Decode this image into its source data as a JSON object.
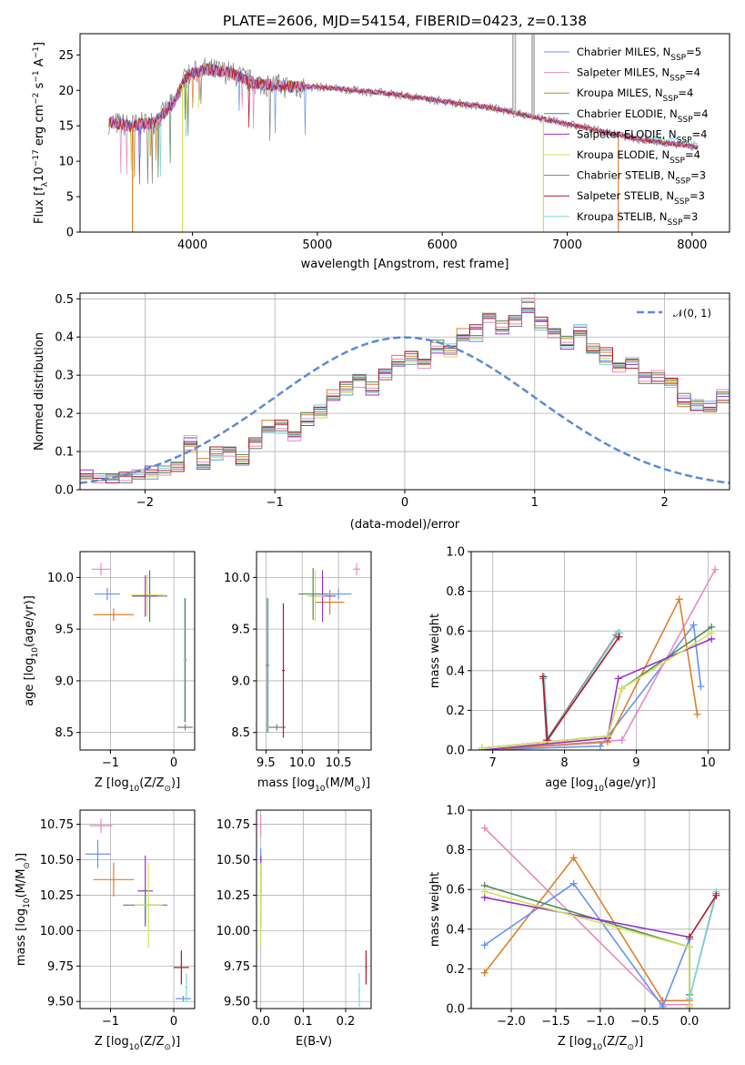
{
  "title": "PLATE=2606, MJD=54154, FIBERID=0423, z=0.138",
  "colors": [
    "#6495ed",
    "#e78ac3",
    "#d9822b",
    "#4d8a5c",
    "#9932cc",
    "#d4e157",
    "#7f7f7f",
    "#b2182b",
    "#7fd8d8"
  ],
  "chart_data": [
    {
      "id": "spectrum",
      "type": "line",
      "xlabel": "wavelength [Angstrom, rest frame]",
      "ylabel_main": "Flux [f",
      "ylabel_sub": "λ",
      "ylabel_rest": "10",
      "ylabel_sup": "−17",
      "ylabel_tail": " erg cm",
      "ylabel_sup2": "−2",
      "ylabel_tail2": " s",
      "ylabel_sup3": "−1",
      "ylabel_tail3": " A",
      "ylabel_sup4": "−1",
      "ylabel_end": "]",
      "xlim": [
        3100,
        8300
      ],
      "ylim": [
        0,
        28
      ],
      "xticks": [
        4000,
        5000,
        6000,
        7000,
        8000
      ],
      "yticks": [
        0,
        5,
        10,
        15,
        20,
        25
      ],
      "grid": false,
      "legend_position": "top-right",
      "legend": [
        {
          "name": "Chabrier MILES, N",
          "sub": "SSP",
          "tail": "=5"
        },
        {
          "name": "Salpeter MILES, N",
          "sub": "SSP",
          "tail": "=4"
        },
        {
          "name": "Kroupa MILES, N",
          "sub": "SSP",
          "tail": "=4"
        },
        {
          "name": "Chabrier ELODIE, N",
          "sub": "SSP",
          "tail": "=4"
        },
        {
          "name": "Salpeter ELODIE, N",
          "sub": "SSP",
          "tail": "=4"
        },
        {
          "name": "Kroupa ELODIE, N",
          "sub": "SSP",
          "tail": "=4"
        },
        {
          "name": "Chabrier STELIB, N",
          "sub": "SSP",
          "tail": "=3"
        },
        {
          "name": "Salpeter STELIB, N",
          "sub": "SSP",
          "tail": "=3"
        },
        {
          "name": "Kroupa STELIB, N",
          "sub": "SSP",
          "tail": "=3"
        }
      ],
      "continuum": {
        "x": [
          3330,
          3500,
          3700,
          3860,
          3950,
          4100,
          4300,
          4500,
          4800,
          5000,
          5300,
          5600,
          6000,
          6400,
          6800,
          7200,
          7600,
          8050
        ],
        "y": [
          15.5,
          15.0,
          15.5,
          18.5,
          22.0,
          23.0,
          22.5,
          21.0,
          20.5,
          20.5,
          20.0,
          19.5,
          18.5,
          17.5,
          16.0,
          14.5,
          13.0,
          12.0
        ]
      },
      "drops": [
        {
          "x": 3520,
          "to": 0,
          "series": 2
        },
        {
          "x": 3920,
          "to": 0,
          "series": 5
        },
        {
          "x": 6810,
          "to": 0,
          "series": 5
        },
        {
          "x": 7410,
          "to": 0,
          "series": 2
        }
      ]
    },
    {
      "id": "residuals",
      "type": "step",
      "xlabel": "(data-model)/error",
      "ylabel": "Normed distribution",
      "xlim": [
        -2.5,
        2.5
      ],
      "ylim": [
        0,
        0.515
      ],
      "xticks": [
        -2,
        -1,
        0,
        1,
        2
      ],
      "xticklabels": [
        "−2",
        "−1",
        "0",
        "1",
        "2"
      ],
      "yticks": [
        0.0,
        0.1,
        0.2,
        0.3,
        0.4,
        0.5
      ],
      "yticklabels": [
        "0.0",
        "0.1",
        "0.2",
        "0.3",
        "0.4",
        "0.5"
      ],
      "grid": true,
      "legend_position": "top-right",
      "gauss_label": "𝒩(0, 1)",
      "bin_width": 0.1,
      "bins_start": -2.5,
      "series_heights": [
        [
          0.04,
          0.03,
          0.03,
          0.03,
          0.04,
          0.04,
          0.05,
          0.06,
          0.11,
          0.06,
          0.09,
          0.1,
          0.07,
          0.12,
          0.15,
          0.16,
          0.14,
          0.18,
          0.2,
          0.24,
          0.26,
          0.28,
          0.26,
          0.3,
          0.33,
          0.34,
          0.33,
          0.37,
          0.36,
          0.39,
          0.4,
          0.45,
          0.42,
          0.44,
          0.49,
          0.43,
          0.41,
          0.38,
          0.42,
          0.36,
          0.35,
          0.32,
          0.34,
          0.29,
          0.3,
          0.29,
          0.24,
          0.23,
          0.22,
          0.25
        ],
        [
          0.03,
          0.03,
          0.03,
          0.04,
          0.04,
          0.04,
          0.05,
          0.06,
          0.12,
          0.07,
          0.1,
          0.11,
          0.08,
          0.13,
          0.17,
          0.17,
          0.15,
          0.19,
          0.21,
          0.25,
          0.27,
          0.3,
          0.27,
          0.31,
          0.34,
          0.35,
          0.34,
          0.38,
          0.37,
          0.41,
          0.42,
          0.46,
          0.43,
          0.45,
          0.48,
          0.44,
          0.42,
          0.39,
          0.41,
          0.37,
          0.36,
          0.33,
          0.33,
          0.3,
          0.29,
          0.28,
          0.23,
          0.22,
          0.21,
          0.24
        ],
        [
          0.04,
          0.03,
          0.04,
          0.03,
          0.04,
          0.05,
          0.05,
          0.07,
          0.13,
          0.06,
          0.1,
          0.1,
          0.08,
          0.12,
          0.16,
          0.16,
          0.14,
          0.18,
          0.21,
          0.24,
          0.27,
          0.29,
          0.26,
          0.3,
          0.33,
          0.35,
          0.33,
          0.37,
          0.37,
          0.4,
          0.41,
          0.45,
          0.42,
          0.44,
          0.47,
          0.43,
          0.41,
          0.38,
          0.42,
          0.37,
          0.34,
          0.32,
          0.34,
          0.29,
          0.3,
          0.28,
          0.24,
          0.22,
          0.22,
          0.25
        ]
      ]
    },
    {
      "id": "age-vs-Z",
      "type": "errorbar",
      "xlabel_main": "Z [log",
      "xlabel_sub": "10",
      "xlabel_rest": "(Z/Z",
      "xlabel_sub2": "⊙",
      "xlabel_end": ")]",
      "ylabel_main": "age  [log",
      "ylabel_sub": "10",
      "ylabel_end": "(age/yr)]",
      "xlim": [
        -1.48,
        0.33
      ],
      "ylim": [
        8.33,
        10.25
      ],
      "xticks": [
        -1,
        0
      ],
      "xticklabels": [
        "−1",
        "0"
      ],
      "yticks": [
        8.5,
        9.0,
        9.5,
        10.0
      ],
      "yticklabels": [
        "8.5",
        "9.0",
        "9.5",
        "10.0"
      ],
      "grid": true,
      "points": [
        {
          "x": -1.15,
          "y": 10.08,
          "xerr": 0.15,
          "yerr": 0.06,
          "c": 1
        },
        {
          "x": -1.05,
          "y": 9.84,
          "xerr": 0.2,
          "yerr": 0.06,
          "c": 0
        },
        {
          "x": -0.95,
          "y": 9.64,
          "xerr": 0.32,
          "yerr": 0.06,
          "c": 2
        },
        {
          "x": -0.38,
          "y": 9.82,
          "xerr": 0.28,
          "yerr": 0.25,
          "c": 3
        },
        {
          "x": -0.42,
          "y": 9.83,
          "xerr": 0.26,
          "yerr": 0.2,
          "c": 5
        },
        {
          "x": -0.45,
          "y": 9.82,
          "xerr": 0.2,
          "yerr": 0.2,
          "c": 4
        },
        {
          "x": 0.18,
          "y": 8.55,
          "xerr": 0.12,
          "yerr": 0.03,
          "c": 6
        },
        {
          "x": 0.18,
          "y": 9.2,
          "xerr": 0.02,
          "yerr": 0.6,
          "c": 7
        },
        {
          "x": 0.17,
          "y": 9.2,
          "xerr": 0.02,
          "yerr": 0.6,
          "c": 8
        }
      ]
    },
    {
      "id": "age-vs-mass",
      "type": "errorbar",
      "xlabel_main": "mass [log",
      "xlabel_sub": "10",
      "xlabel_rest": "(M/M",
      "xlabel_sub2": "⊙",
      "xlabel_end": ")]",
      "xlim": [
        9.37,
        10.95
      ],
      "ylim": [
        8.33,
        10.25
      ],
      "xticks": [
        9.5,
        10.0,
        10.5
      ],
      "xticklabels": [
        "9.5",
        "10.0",
        "10.5"
      ],
      "yticks": [
        8.5,
        9.0,
        9.5,
        10.0
      ],
      "yticklabels": [
        "8.5",
        "9.0",
        "9.5",
        "10.0"
      ],
      "grid": true,
      "points": [
        {
          "x": 10.75,
          "y": 10.08,
          "xerr": 0.05,
          "yerr": 0.06,
          "c": 1
        },
        {
          "x": 10.5,
          "y": 9.84,
          "xerr": 0.18,
          "yerr": 0.05,
          "c": 0
        },
        {
          "x": 10.38,
          "y": 9.76,
          "xerr": 0.2,
          "yerr": 0.12,
          "c": 2
        },
        {
          "x": 10.28,
          "y": 9.82,
          "xerr": 0.18,
          "yerr": 0.25,
          "c": 4
        },
        {
          "x": 10.18,
          "y": 9.82,
          "xerr": 0.12,
          "yerr": 0.25,
          "c": 5
        },
        {
          "x": 10.15,
          "y": 9.84,
          "xerr": 0.2,
          "yerr": 0.25,
          "c": 3
        },
        {
          "x": 9.65,
          "y": 8.55,
          "xerr": 0.12,
          "yerr": 0.03,
          "c": 6
        },
        {
          "x": 9.74,
          "y": 9.1,
          "xerr": 0.02,
          "yerr": 0.65,
          "c": 7
        },
        {
          "x": 9.53,
          "y": 9.15,
          "xerr": 0.02,
          "yerr": 0.65,
          "c": 8
        },
        {
          "x": 9.52,
          "y": 9.15,
          "xerr": 0.02,
          "yerr": 0.65,
          "c": 6
        }
      ]
    },
    {
      "id": "weight-vs-age",
      "type": "line",
      "xlabel_main": "age  [log",
      "xlabel_sub": "10",
      "xlabel_end": "(age/yr)]",
      "ylabel": "mass weight",
      "xlim": [
        6.7,
        10.3
      ],
      "ylim": [
        0,
        1.0
      ],
      "xticks": [
        7,
        8,
        9,
        10
      ],
      "yticks": [
        0.0,
        0.2,
        0.4,
        0.6,
        0.8,
        1.0
      ],
      "yticklabels": [
        "0.0",
        "0.2",
        "0.4",
        "0.6",
        "0.8",
        "1.0"
      ],
      "grid": true,
      "series": [
        {
          "c": 6,
          "x": [
            7.7,
            7.75,
            8.72,
            8.75
          ],
          "y": [
            0.36,
            0.05,
            0.58,
            0.59
          ]
        },
        {
          "c": 8,
          "x": [
            7.72,
            7.77,
            8.75,
            8.77
          ],
          "y": [
            0.37,
            0.05,
            0.59,
            0.59
          ]
        },
        {
          "c": 7,
          "x": [
            7.7,
            7.76,
            8.76
          ],
          "y": [
            0.37,
            0.05,
            0.57
          ]
        },
        {
          "c": 0,
          "x": [
            6.85,
            8.5,
            9.8,
            9.9
          ],
          "y": [
            0.0,
            0.02,
            0.63,
            0.32
          ]
        },
        {
          "c": 1,
          "x": [
            6.85,
            8.8,
            10.1
          ],
          "y": [
            0.0,
            0.05,
            0.91
          ]
        },
        {
          "c": 2,
          "x": [
            6.85,
            8.6,
            9.6,
            9.85
          ],
          "y": [
            0.0,
            0.04,
            0.76,
            0.18
          ]
        },
        {
          "c": 3,
          "x": [
            6.85,
            8.6,
            8.8,
            10.05
          ],
          "y": [
            0.01,
            0.07,
            0.31,
            0.62
          ]
        },
        {
          "c": 4,
          "x": [
            6.85,
            8.6,
            8.75,
            10.05
          ],
          "y": [
            0.0,
            0.06,
            0.36,
            0.56
          ]
        },
        {
          "c": 5,
          "x": [
            6.85,
            8.6,
            8.8,
            10.05
          ],
          "y": [
            0.01,
            0.07,
            0.31,
            0.59
          ]
        }
      ]
    },
    {
      "id": "mass-vs-Z",
      "type": "errorbar",
      "xlabel_main": "Z [log",
      "xlabel_sub": "10",
      "xlabel_rest": "(Z/Z",
      "xlabel_sub2": "⊙",
      "xlabel_end": ")]",
      "ylabel_main": "mass [log",
      "ylabel_sub": "10",
      "ylabel_rest": "(M/M",
      "ylabel_sub2": "⊙",
      "ylabel_end": ")]",
      "xlim": [
        -1.48,
        0.33
      ],
      "ylim": [
        9.45,
        10.85
      ],
      "xticks": [
        -1,
        0
      ],
      "xticklabels": [
        "−1",
        "0"
      ],
      "yticks": [
        9.5,
        9.75,
        10.0,
        10.25,
        10.5,
        10.75
      ],
      "yticklabels": [
        "9.50",
        "9.75",
        "10.00",
        "10.25",
        "10.50",
        "10.75"
      ],
      "grid": true,
      "points": [
        {
          "x": -1.15,
          "y": 10.74,
          "xerr": 0.18,
          "yerr": 0.05,
          "c": 1
        },
        {
          "x": -1.2,
          "y": 10.54,
          "xerr": 0.2,
          "yerr": 0.1,
          "c": 0
        },
        {
          "x": -0.95,
          "y": 10.36,
          "xerr": 0.32,
          "yerr": 0.12,
          "c": 2
        },
        {
          "x": -0.45,
          "y": 10.28,
          "xerr": 0.12,
          "yerr": 0.25,
          "c": 4
        },
        {
          "x": -0.45,
          "y": 10.18,
          "xerr": 0.35,
          "yerr": 0.13,
          "c": 3
        },
        {
          "x": -0.4,
          "y": 10.18,
          "xerr": 0.22,
          "yerr": 0.3,
          "c": 5
        },
        {
          "x": 0.12,
          "y": 9.74,
          "xerr": 0.12,
          "yerr": 0.12,
          "c": 7
        },
        {
          "x": 0.15,
          "y": 9.52,
          "xerr": 0.12,
          "yerr": 0.02,
          "c": 0
        },
        {
          "x": 0.2,
          "y": 9.6,
          "xerr": 0.02,
          "yerr": 0.1,
          "c": 8
        }
      ]
    },
    {
      "id": "mass-vs-EBV",
      "type": "errorbar",
      "xlabel": "E(B-V)",
      "xlim": [
        -0.01,
        0.26
      ],
      "ylim": [
        9.45,
        10.85
      ],
      "xticks": [
        0.0,
        0.1,
        0.2
      ],
      "xticklabels": [
        "0.0",
        "0.1",
        "0.2"
      ],
      "yticks": [
        9.5,
        9.75,
        10.0,
        10.25,
        10.5,
        10.75
      ],
      "yticklabels": [
        "9.50",
        "9.75",
        "10.00",
        "10.25",
        "10.50",
        "10.75"
      ],
      "grid": true,
      "points": [
        {
          "x": 0.0,
          "y": 10.74,
          "xerr": 0.002,
          "yerr": 0.08,
          "c": 1
        },
        {
          "x": 0.0,
          "y": 10.5,
          "xerr": 0.002,
          "yerr": 0.08,
          "c": 0
        },
        {
          "x": 0.0,
          "y": 10.4,
          "xerr": 0.002,
          "yerr": 0.12,
          "c": 2
        },
        {
          "x": 0.0,
          "y": 10.28,
          "xerr": 0.002,
          "yerr": 0.25,
          "c": 4
        },
        {
          "x": 0.0,
          "y": 10.18,
          "xerr": 0.002,
          "yerr": 0.3,
          "c": 5
        },
        {
          "x": 0.248,
          "y": 9.74,
          "xerr": 0.002,
          "yerr": 0.12,
          "c": 7
        },
        {
          "x": 0.232,
          "y": 9.58,
          "xerr": 0.002,
          "yerr": 0.12,
          "c": 8
        }
      ]
    },
    {
      "id": "weight-vs-Z",
      "type": "line",
      "xlabel_main": "Z [log",
      "xlabel_sub": "10",
      "xlabel_rest": "(Z/Z",
      "xlabel_sub2": "⊙",
      "xlabel_end": ")]",
      "ylabel": "mass weight",
      "xlim": [
        -2.45,
        0.45
      ],
      "ylim": [
        0,
        1.0
      ],
      "xticks": [
        -2.0,
        -1.5,
        -1.0,
        -0.5,
        0.0
      ],
      "xticklabels": [
        "−2.0",
        "−1.5",
        "−1.0",
        "−0.5",
        "0.0"
      ],
      "yticks": [
        0.0,
        0.2,
        0.4,
        0.6,
        0.8,
        1.0
      ],
      "yticklabels": [
        "0.0",
        "0.2",
        "0.4",
        "0.6",
        "0.8",
        "1.0"
      ],
      "grid": true,
      "series": [
        {
          "c": 1,
          "x": [
            -2.3,
            -0.3,
            0.0
          ],
          "y": [
            0.91,
            0.02,
            0.02
          ]
        },
        {
          "c": 2,
          "x": [
            -2.3,
            -1.3,
            -0.3,
            0.0
          ],
          "y": [
            0.18,
            0.76,
            0.04,
            0.04
          ]
        },
        {
          "c": 0,
          "x": [
            -2.3,
            -1.3,
            -0.3,
            0.0,
            0.0
          ],
          "y": [
            0.32,
            0.63,
            0.01,
            0.35,
            0.0
          ]
        },
        {
          "c": 3,
          "x": [
            -2.3,
            0.0,
            0.0
          ],
          "y": [
            0.62,
            0.31,
            0.07
          ]
        },
        {
          "c": 4,
          "x": [
            -2.3,
            0.0
          ],
          "y": [
            0.56,
            0.36
          ]
        },
        {
          "c": 5,
          "x": [
            -2.3,
            0.0,
            0.0
          ],
          "y": [
            0.59,
            0.31,
            0.01
          ]
        },
        {
          "c": 6,
          "x": [
            0.0,
            0.3
          ],
          "y": [
            0.05,
            0.58
          ]
        },
        {
          "c": 8,
          "x": [
            0.0,
            0.3
          ],
          "y": [
            0.05,
            0.59
          ]
        },
        {
          "c": 7,
          "x": [
            0.0,
            0.3
          ],
          "y": [
            0.36,
            0.57
          ]
        }
      ]
    }
  ]
}
